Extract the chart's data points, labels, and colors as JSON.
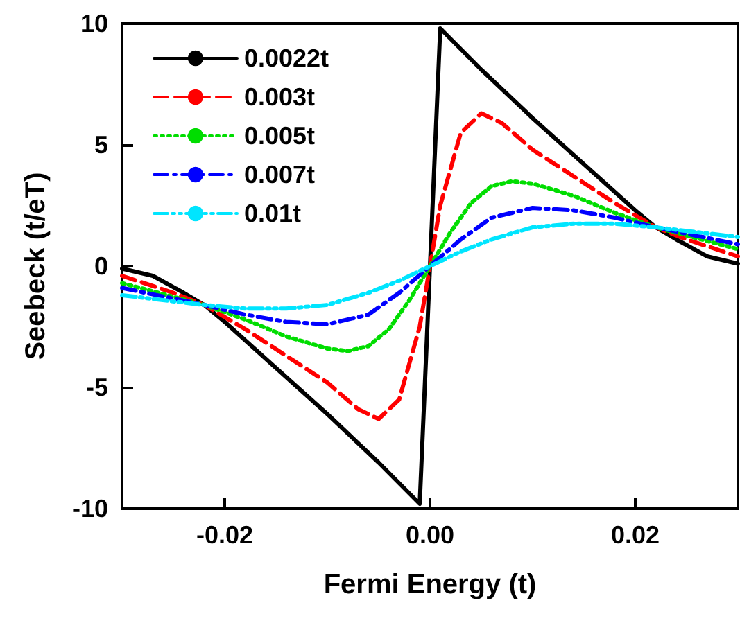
{
  "chart_data": {
    "type": "line",
    "xlabel": "Fermi Energy (t)",
    "ylabel": "Seebeck (t/eT)",
    "xlim": [
      -0.03,
      0.03
    ],
    "xticks": [
      -0.02,
      {
        "value": 0,
        "label": "0.00"
      },
      0.02
    ],
    "ylim": [
      -10,
      10
    ],
    "yticks": [
      -10,
      -5,
      0,
      5,
      10
    ],
    "grid": false,
    "legend": "top left",
    "marker": "none",
    "series": [
      {
        "name": "0.0022t",
        "color": "#000000",
        "line_style": "solid",
        "x": [
          -0.03,
          -0.027,
          -0.024,
          -0.022,
          -0.02,
          -0.015,
          -0.01,
          -0.005,
          -0.001,
          0.001,
          0.005,
          0.01,
          0.015,
          0.02,
          0.022,
          0.024,
          0.027,
          0.03
        ],
        "values": [
          -0.1,
          -0.4,
          -1.1,
          -1.6,
          -2.3,
          -4.2,
          -6.1,
          -8.1,
          -9.8,
          9.8,
          8.1,
          6.1,
          4.2,
          2.3,
          1.6,
          1.1,
          0.4,
          0.1
        ]
      },
      {
        "name": "0.003t",
        "color": "#ff0000",
        "line_style": "dashed",
        "x": [
          -0.03,
          -0.025,
          -0.022,
          -0.018,
          -0.014,
          -0.01,
          -0.007,
          -0.005,
          -0.003,
          -0.001,
          0,
          0.001,
          0.003,
          0.005,
          0.007,
          0.01,
          0.014,
          0.018,
          0.022,
          0.025,
          0.03
        ],
        "values": [
          -0.4,
          -1.1,
          -1.6,
          -2.6,
          -3.7,
          -4.8,
          -5.9,
          -6.3,
          -5.5,
          -2.5,
          0,
          2.5,
          5.5,
          6.3,
          5.9,
          4.8,
          3.7,
          2.6,
          1.6,
          1.1,
          0.4
        ]
      },
      {
        "name": "0.005t",
        "color": "#00dd00",
        "line_style": "dotted",
        "x": [
          -0.03,
          -0.022,
          -0.018,
          -0.014,
          -0.01,
          -0.008,
          -0.006,
          -0.004,
          -0.002,
          0,
          0.002,
          0.004,
          0.006,
          0.008,
          0.01,
          0.014,
          0.018,
          0.022,
          0.03
        ],
        "values": [
          -0.7,
          -1.6,
          -2.2,
          -2.9,
          -3.4,
          -3.5,
          -3.3,
          -2.6,
          -1.4,
          0,
          1.4,
          2.6,
          3.3,
          3.5,
          3.4,
          2.9,
          2.2,
          1.6,
          0.7
        ]
      },
      {
        "name": "0.007t",
        "color": "#0000ff",
        "line_style": "dashdot",
        "x": [
          -0.03,
          -0.022,
          -0.018,
          -0.014,
          -0.01,
          -0.006,
          -0.003,
          0,
          0.003,
          0.006,
          0.01,
          0.014,
          0.018,
          0.022,
          0.03
        ],
        "values": [
          -0.9,
          -1.6,
          -2.0,
          -2.3,
          -2.4,
          -2.0,
          -1.1,
          0,
          1.1,
          2.0,
          2.4,
          2.3,
          2.0,
          1.6,
          0.9
        ]
      },
      {
        "name": "0.01t",
        "color": "#00e5ff",
        "line_style": "dashdotdot",
        "x": [
          -0.03,
          -0.022,
          -0.018,
          -0.014,
          -0.01,
          -0.006,
          -0.003,
          0,
          0.003,
          0.006,
          0.01,
          0.014,
          0.018,
          0.022,
          0.03
        ],
        "values": [
          -1.2,
          -1.6,
          -1.75,
          -1.75,
          -1.6,
          -1.1,
          -0.6,
          0,
          0.6,
          1.1,
          1.6,
          1.75,
          1.75,
          1.6,
          1.2
        ]
      }
    ]
  }
}
